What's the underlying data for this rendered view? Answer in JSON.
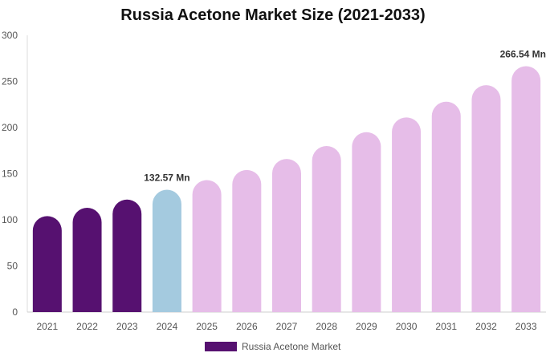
{
  "chart_data": {
    "type": "bar",
    "title": "Russia Acetone Market Size (2021-2033)",
    "xlabel": "",
    "ylabel": "",
    "categories": [
      "2021",
      "2022",
      "2023",
      "2024",
      "2025",
      "2026",
      "2027",
      "2028",
      "2029",
      "2030",
      "2031",
      "2032",
      "2033"
    ],
    "series": [
      {
        "name": "Russia Acetone Market",
        "values": [
          104,
          113,
          122,
          132.57,
          143,
          154,
          166,
          180,
          195,
          211,
          228,
          246,
          266.54
        ]
      }
    ],
    "ylim": [
      0,
      300
    ],
    "yticks": [
      0,
      50,
      100,
      150,
      200,
      250,
      300
    ],
    "grid": false,
    "legend_position": "bottom",
    "annotations": [
      {
        "category": "2024",
        "text": "132.57 Mn"
      },
      {
        "category": "2033",
        "text": "266.54 Mn"
      }
    ],
    "colors": {
      "historical": "#561170",
      "base_year": "#a4cadf",
      "forecast": "#e6bde8",
      "legend": "#561170"
    }
  }
}
